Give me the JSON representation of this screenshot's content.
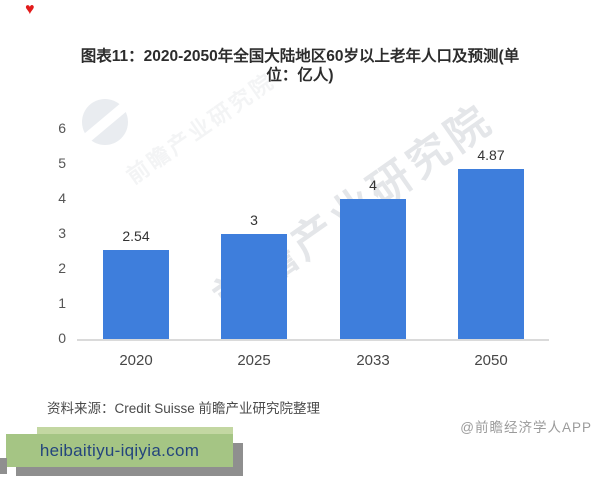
{
  "decorations": {
    "heart_icon": "♥",
    "heart_color": "#e21b1b"
  },
  "title": {
    "full": "图表11：2020-2050年全国大陆地区60岁以上老年人口及预测(单位：亿人)",
    "lines": [
      "图表11：2020-2050年全国大陆地区60岁以上老年人口及预测(单",
      "位：亿人)"
    ]
  },
  "chart_data": {
    "type": "bar",
    "title": "2020-2050年全国大陆地区60岁以上老年人口及预测",
    "unit": "亿人",
    "categories": [
      "2020",
      "2025",
      "2033",
      "2050"
    ],
    "values": [
      2.54,
      3,
      4,
      4.87
    ],
    "value_labels": [
      "2.54",
      "3",
      "4",
      "4.87"
    ],
    "xlabel": "",
    "ylabel": "",
    "ylim": [
      0,
      6
    ],
    "yticks": [
      0,
      1,
      2,
      3,
      4,
      5,
      6
    ],
    "bar_color": "#3e7edc",
    "axis_line_color": "#dadada",
    "grid": false,
    "legend_position": "none"
  },
  "watermarks": {
    "diagonal_text": "前瞻产业研究院",
    "logo": "prospective-swoosh-logo",
    "credit_text": "@前瞻经济学人APP"
  },
  "source": {
    "text": "资料来源：Credit Suisse 前瞻产业研究院整理"
  },
  "site_banner": {
    "url": "heibaitiyu-iqiyia.com",
    "background": "#a5c584",
    "highlight": "#c3d7a2",
    "shadow": "#8f8f8f",
    "text_color": "#24457d"
  }
}
